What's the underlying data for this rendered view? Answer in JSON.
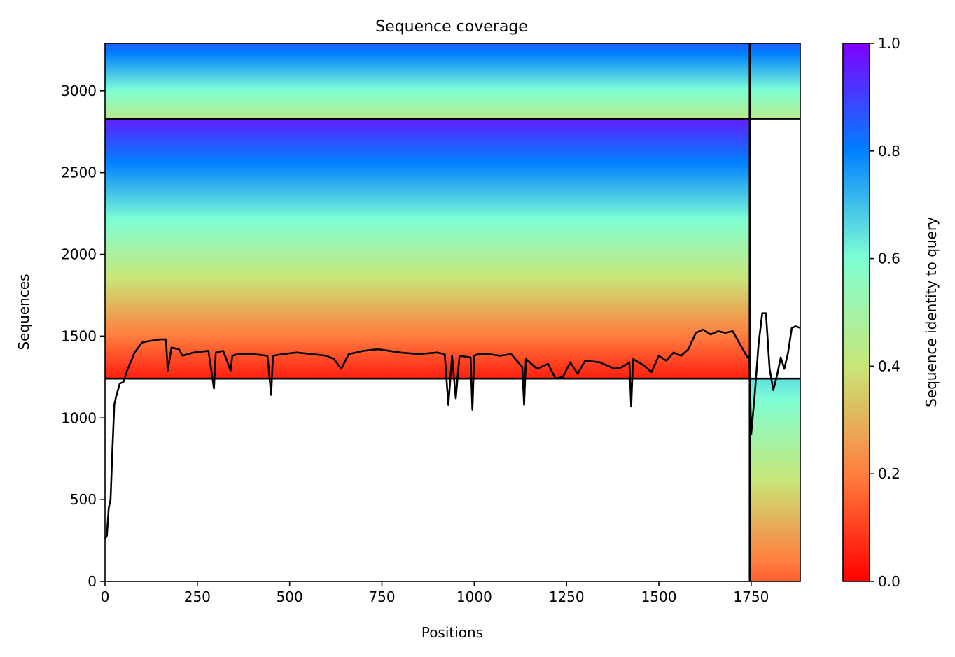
{
  "chart_data": {
    "type": "heatmap",
    "title": "Sequence coverage",
    "xlabel": "Positions",
    "ylabel": "Sequences",
    "xlim": [
      0,
      1883
    ],
    "ylim": [
      0,
      3290
    ],
    "xticks": [
      0,
      250,
      500,
      750,
      1000,
      1250,
      1500,
      1750
    ],
    "yticks": [
      0,
      500,
      1000,
      1500,
      2000,
      2500,
      3000
    ],
    "colorbar": {
      "label": "Sequence identity to query",
      "range": [
        0,
        1
      ],
      "ticks": [
        0.0,
        0.2,
        0.4,
        0.6,
        0.8,
        1.0
      ],
      "tick_labels": [
        "0.0",
        "0.2",
        "0.4",
        "0.6",
        "0.8",
        "1.0"
      ],
      "colormap": "rainbow_r",
      "colors": [
        "#ff0000",
        "#ff7f40",
        "#c8e678",
        "#7fffd4",
        "#0080ff",
        "#8000ff"
      ]
    },
    "chain_boundaries": {
      "x": [
        1746
      ],
      "y": [
        1240,
        2830
      ]
    },
    "blocks": [
      {
        "name": "paired",
        "x": [
          0,
          1883
        ],
        "y": [
          2830,
          3290
        ],
        "identity_bottom": 0.45,
        "identity_top": 0.85
      },
      {
        "name": "chain-1-unpaired",
        "x": [
          0,
          1746
        ],
        "y": [
          1240,
          2830
        ],
        "identity_bottom": 0.05,
        "identity_top": 0.95
      },
      {
        "name": "chain-2-unpaired",
        "x": [
          1746,
          1883
        ],
        "y": [
          0,
          1240
        ],
        "identity_bottom": 0.15,
        "identity_top": 0.65
      }
    ],
    "coverage_line": {
      "color": "#000000",
      "x": [
        0,
        5,
        10,
        15,
        20,
        25,
        30,
        40,
        50,
        60,
        80,
        100,
        120,
        150,
        165,
        170,
        180,
        200,
        210,
        240,
        280,
        295,
        300,
        320,
        340,
        345,
        360,
        400,
        440,
        450,
        455,
        480,
        520,
        560,
        600,
        620,
        640,
        660,
        700,
        740,
        800,
        850,
        900,
        920,
        930,
        940,
        950,
        960,
        990,
        995,
        1000,
        1010,
        1040,
        1070,
        1100,
        1130,
        1135,
        1140,
        1170,
        1200,
        1220,
        1240,
        1260,
        1280,
        1300,
        1340,
        1380,
        1400,
        1420,
        1425,
        1430,
        1460,
        1480,
        1500,
        1520,
        1540,
        1560,
        1580,
        1600,
        1620,
        1640,
        1660,
        1680,
        1700,
        1720,
        1740,
        1745,
        1750,
        1760,
        1770,
        1780,
        1790,
        1800,
        1810,
        1820,
        1830,
        1840,
        1850,
        1860,
        1870,
        1883
      ],
      "y": [
        260,
        280,
        450,
        500,
        800,
        1080,
        1130,
        1210,
        1220,
        1290,
        1400,
        1460,
        1470,
        1480,
        1480,
        1290,
        1430,
        1420,
        1380,
        1400,
        1410,
        1180,
        1400,
        1410,
        1290,
        1380,
        1390,
        1390,
        1380,
        1140,
        1380,
        1390,
        1400,
        1390,
        1380,
        1360,
        1300,
        1390,
        1410,
        1420,
        1400,
        1390,
        1400,
        1390,
        1080,
        1380,
        1120,
        1380,
        1370,
        1050,
        1380,
        1390,
        1390,
        1380,
        1390,
        1310,
        1080,
        1360,
        1300,
        1330,
        1240,
        1250,
        1340,
        1270,
        1350,
        1340,
        1300,
        1310,
        1340,
        1070,
        1360,
        1320,
        1280,
        1380,
        1350,
        1400,
        1380,
        1420,
        1520,
        1540,
        1510,
        1530,
        1520,
        1530,
        1450,
        1370,
        1380,
        900,
        1150,
        1450,
        1640,
        1640,
        1300,
        1170,
        1260,
        1370,
        1300,
        1400,
        1550,
        1560,
        1550
      ]
    }
  }
}
